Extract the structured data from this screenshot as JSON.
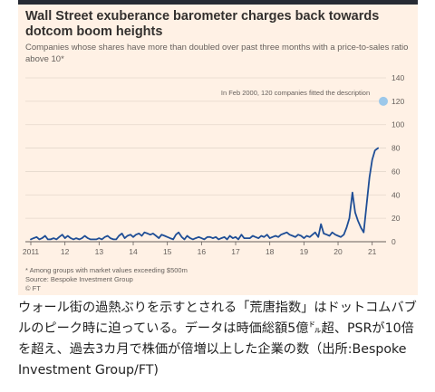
{
  "card": {
    "title": "Wall Street exuberance barometer charges back towards dotcom boom heights",
    "subtitle": "Companies whose shares have more than doubled over past three months with a price-to-sales ratio above 10*",
    "footnote": "* Among groups with market values exceeding $500m",
    "source": "Source: Bespoke Investment Group",
    "credit": "© FT"
  },
  "caption": "ウォール街の過熱ぶりを示すとされる「荒唐指数」はドットコムバブルのピーク時に迫っている。データは時価総額5億㌦超、PSRが10倍を超え、過去3カ月で株価が倍増以上した企業の数（出所:Bespoke Investment Group/FT)",
  "colors": {
    "line": "#1f4e96",
    "marker": "#9cc8ea",
    "grid": "#e5d8cc",
    "text": "#66605c",
    "background": "#fff1e5"
  },
  "chart_data": {
    "type": "line",
    "title": "Wall Street exuberance barometer charges back towards dotcom boom heights",
    "subtitle": "Companies whose shares have more than doubled over past three months with a price-to-sales ratio above 10*",
    "xlabel": "",
    "ylabel": "",
    "xlim": [
      2011,
      2021.3
    ],
    "ylim": [
      0,
      140
    ],
    "yticks": [
      0,
      20,
      40,
      60,
      80,
      100,
      120,
      140
    ],
    "xticks": [
      {
        "value": 2011,
        "label": "2011"
      },
      {
        "value": 2012,
        "label": "12"
      },
      {
        "value": 2013,
        "label": "13"
      },
      {
        "value": 2014,
        "label": "14"
      },
      {
        "value": 2015,
        "label": "15"
      },
      {
        "value": 2016,
        "label": "16"
      },
      {
        "value": 2017,
        "label": "17"
      },
      {
        "value": 2018,
        "label": "18"
      },
      {
        "value": 2019,
        "label": "19"
      },
      {
        "value": 2020,
        "label": "20"
      },
      {
        "value": 2021,
        "label": "21"
      }
    ],
    "grid": true,
    "y_axis_position": "right",
    "series": [
      {
        "x": [
          2011.0,
          2011.08,
          2011.17,
          2011.25,
          2011.33,
          2011.42,
          2011.5,
          2011.58,
          2011.67,
          2011.75,
          2011.83,
          2011.92,
          2012.0,
          2012.08,
          2012.17,
          2012.25,
          2012.33,
          2012.42,
          2012.5,
          2012.58,
          2012.67,
          2012.75,
          2012.83,
          2012.92,
          2013.0,
          2013.08,
          2013.17,
          2013.25,
          2013.33,
          2013.42,
          2013.5,
          2013.58,
          2013.67,
          2013.75,
          2013.83,
          2013.92,
          2014.0,
          2014.08,
          2014.17,
          2014.25,
          2014.33,
          2014.42,
          2014.5,
          2014.58,
          2014.67,
          2014.75,
          2014.83,
          2014.92,
          2015.0,
          2015.08,
          2015.17,
          2015.25,
          2015.33,
          2015.42,
          2015.5,
          2015.58,
          2015.67,
          2015.75,
          2015.83,
          2015.92,
          2016.0,
          2016.08,
          2016.17,
          2016.25,
          2016.33,
          2016.42,
          2016.5,
          2016.58,
          2016.67,
          2016.75,
          2016.83,
          2016.92,
          2017.0,
          2017.08,
          2017.17,
          2017.25,
          2017.33,
          2017.42,
          2017.5,
          2017.58,
          2017.67,
          2017.75,
          2017.83,
          2017.92,
          2018.0,
          2018.08,
          2018.17,
          2018.25,
          2018.33,
          2018.42,
          2018.5,
          2018.58,
          2018.67,
          2018.75,
          2018.83,
          2018.92,
          2019.0,
          2019.08,
          2019.17,
          2019.25,
          2019.33,
          2019.42,
          2019.5,
          2019.58,
          2019.67,
          2019.75,
          2019.83,
          2019.92,
          2020.0,
          2020.08,
          2020.17,
          2020.25,
          2020.33,
          2020.42,
          2020.5,
          2020.58,
          2020.67,
          2020.75,
          2020.83,
          2020.92,
          2021.0,
          2021.08,
          2021.17
        ],
        "values": [
          2,
          3,
          4,
          2,
          3,
          5,
          2,
          2,
          3,
          2,
          4,
          6,
          3,
          5,
          3,
          2,
          3,
          2,
          3,
          5,
          3,
          2,
          2,
          2,
          3,
          2,
          4,
          5,
          3,
          2,
          2,
          5,
          7,
          3,
          5,
          6,
          4,
          6,
          7,
          5,
          8,
          7,
          6,
          7,
          5,
          3,
          6,
          5,
          4,
          3,
          2,
          6,
          8,
          4,
          2,
          5,
          3,
          2,
          3,
          4,
          3,
          2,
          4,
          4,
          3,
          4,
          2,
          3,
          4,
          2,
          5,
          3,
          4,
          2,
          6,
          3,
          3,
          3,
          5,
          4,
          3,
          5,
          4,
          6,
          3,
          4,
          5,
          4,
          6,
          7,
          8,
          6,
          5,
          4,
          6,
          5,
          3,
          5,
          4,
          6,
          8,
          4,
          15,
          7,
          6,
          5,
          8,
          6,
          5,
          4,
          6,
          12,
          20,
          42,
          25,
          18,
          12,
          8,
          30,
          55,
          70,
          78,
          80
        ]
      }
    ],
    "annotations": [
      {
        "text": "In Feb 2000, 120 companies fitted the description",
        "value": 120
      }
    ]
  }
}
